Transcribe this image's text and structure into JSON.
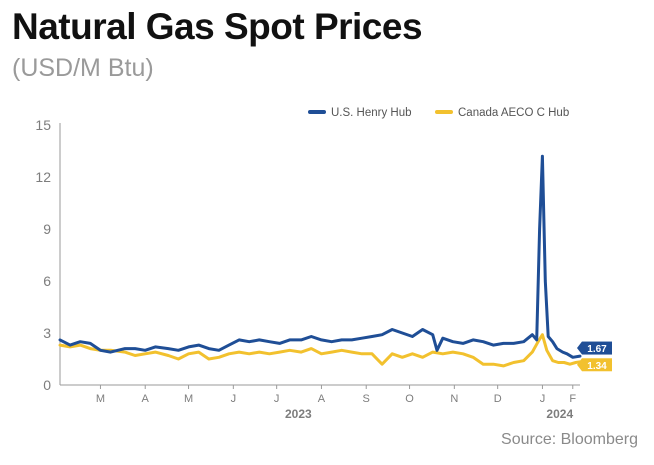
{
  "title": "Natural Gas Spot Prices",
  "subtitle": "(USD/M Btu)",
  "source": "Source: Bloomberg",
  "colors": {
    "henry": "#1f4e96",
    "aeco": "#f2c12e",
    "axis": "#9a9a9a"
  },
  "chart_data": {
    "type": "line",
    "ylim": [
      0,
      15
    ],
    "yticks": [
      0,
      3,
      6,
      9,
      12,
      15
    ],
    "x_range": [
      "2023-02-15",
      "2024-02-10"
    ],
    "x_month_ticks": [
      {
        "label": "M",
        "date": "2023-03-15"
      },
      {
        "label": "A",
        "date": "2023-04-15"
      },
      {
        "label": "M",
        "date": "2023-05-15"
      },
      {
        "label": "J",
        "date": "2023-06-15"
      },
      {
        "label": "J",
        "date": "2023-07-15"
      },
      {
        "label": "A",
        "date": "2023-08-15"
      },
      {
        "label": "S",
        "date": "2023-09-15"
      },
      {
        "label": "O",
        "date": "2023-10-15"
      },
      {
        "label": "N",
        "date": "2023-11-15"
      },
      {
        "label": "D",
        "date": "2023-12-15"
      },
      {
        "label": "J",
        "date": "2024-01-15"
      },
      {
        "label": "F",
        "date": "2024-02-05"
      }
    ],
    "year_labels": [
      {
        "label": "2023",
        "date": "2023-07-30"
      },
      {
        "label": "2024",
        "date": "2024-01-27"
      }
    ],
    "legend": {
      "position": "top-right"
    },
    "series": [
      {
        "name": "U.S. Henry Hub",
        "color": "#1f4e96",
        "end_label": "1.67",
        "points": [
          [
            "2023-02-15",
            2.6
          ],
          [
            "2023-02-22",
            2.3
          ],
          [
            "2023-03-01",
            2.5
          ],
          [
            "2023-03-08",
            2.4
          ],
          [
            "2023-03-15",
            2.0
          ],
          [
            "2023-03-22",
            1.9
          ],
          [
            "2023-04-01",
            2.1
          ],
          [
            "2023-04-08",
            2.1
          ],
          [
            "2023-04-15",
            2.0
          ],
          [
            "2023-04-22",
            2.2
          ],
          [
            "2023-05-01",
            2.1
          ],
          [
            "2023-05-08",
            2.0
          ],
          [
            "2023-05-15",
            2.2
          ],
          [
            "2023-05-22",
            2.3
          ],
          [
            "2023-05-29",
            2.1
          ],
          [
            "2023-06-05",
            2.0
          ],
          [
            "2023-06-12",
            2.3
          ],
          [
            "2023-06-19",
            2.6
          ],
          [
            "2023-06-26",
            2.5
          ],
          [
            "2023-07-03",
            2.6
          ],
          [
            "2023-07-10",
            2.5
          ],
          [
            "2023-07-17",
            2.4
          ],
          [
            "2023-07-24",
            2.6
          ],
          [
            "2023-08-01",
            2.6
          ],
          [
            "2023-08-08",
            2.8
          ],
          [
            "2023-08-15",
            2.6
          ],
          [
            "2023-08-22",
            2.5
          ],
          [
            "2023-08-29",
            2.6
          ],
          [
            "2023-09-05",
            2.6
          ],
          [
            "2023-09-12",
            2.7
          ],
          [
            "2023-09-19",
            2.8
          ],
          [
            "2023-09-26",
            2.9
          ],
          [
            "2023-10-03",
            3.2
          ],
          [
            "2023-10-10",
            3.0
          ],
          [
            "2023-10-17",
            2.8
          ],
          [
            "2023-10-24",
            3.2
          ],
          [
            "2023-10-31",
            2.9
          ],
          [
            "2023-11-03",
            2.0
          ],
          [
            "2023-11-07",
            2.7
          ],
          [
            "2023-11-14",
            2.5
          ],
          [
            "2023-11-21",
            2.4
          ],
          [
            "2023-11-28",
            2.6
          ],
          [
            "2023-12-05",
            2.5
          ],
          [
            "2023-12-12",
            2.3
          ],
          [
            "2023-12-19",
            2.4
          ],
          [
            "2023-12-26",
            2.4
          ],
          [
            "2024-01-02",
            2.5
          ],
          [
            "2024-01-08",
            2.9
          ],
          [
            "2024-01-11",
            2.6
          ],
          [
            "2024-01-13",
            9.0
          ],
          [
            "2024-01-15",
            13.2
          ],
          [
            "2024-01-17",
            6.0
          ],
          [
            "2024-01-19",
            2.8
          ],
          [
            "2024-01-22",
            2.5
          ],
          [
            "2024-01-25",
            2.1
          ],
          [
            "2024-01-29",
            1.9
          ],
          [
            "2024-02-01",
            1.8
          ],
          [
            "2024-02-05",
            1.6
          ],
          [
            "2024-02-10",
            1.67
          ]
        ]
      },
      {
        "name": "Canada AECO C Hub",
        "color": "#f2c12e",
        "end_label": "1.34",
        "points": [
          [
            "2023-02-15",
            2.3
          ],
          [
            "2023-02-22",
            2.2
          ],
          [
            "2023-03-01",
            2.3
          ],
          [
            "2023-03-08",
            2.1
          ],
          [
            "2023-03-15",
            2.0
          ],
          [
            "2023-03-22",
            2.0
          ],
          [
            "2023-04-01",
            1.9
          ],
          [
            "2023-04-08",
            1.7
          ],
          [
            "2023-04-15",
            1.8
          ],
          [
            "2023-04-22",
            1.9
          ],
          [
            "2023-05-01",
            1.7
          ],
          [
            "2023-05-08",
            1.5
          ],
          [
            "2023-05-15",
            1.8
          ],
          [
            "2023-05-22",
            1.9
          ],
          [
            "2023-05-29",
            1.5
          ],
          [
            "2023-06-05",
            1.6
          ],
          [
            "2023-06-12",
            1.8
          ],
          [
            "2023-06-19",
            1.9
          ],
          [
            "2023-06-26",
            1.8
          ],
          [
            "2023-07-03",
            1.9
          ],
          [
            "2023-07-10",
            1.8
          ],
          [
            "2023-07-17",
            1.9
          ],
          [
            "2023-07-24",
            2.0
          ],
          [
            "2023-08-01",
            1.9
          ],
          [
            "2023-08-08",
            2.1
          ],
          [
            "2023-08-15",
            1.8
          ],
          [
            "2023-08-22",
            1.9
          ],
          [
            "2023-08-29",
            2.0
          ],
          [
            "2023-09-05",
            1.9
          ],
          [
            "2023-09-12",
            1.8
          ],
          [
            "2023-09-19",
            1.8
          ],
          [
            "2023-09-26",
            1.2
          ],
          [
            "2023-10-03",
            1.8
          ],
          [
            "2023-10-10",
            1.6
          ],
          [
            "2023-10-17",
            1.8
          ],
          [
            "2023-10-24",
            1.6
          ],
          [
            "2023-10-31",
            1.9
          ],
          [
            "2023-11-07",
            1.8
          ],
          [
            "2023-11-14",
            1.9
          ],
          [
            "2023-11-21",
            1.8
          ],
          [
            "2023-11-28",
            1.6
          ],
          [
            "2023-12-05",
            1.2
          ],
          [
            "2023-12-12",
            1.2
          ],
          [
            "2023-12-19",
            1.1
          ],
          [
            "2023-12-26",
            1.3
          ],
          [
            "2024-01-02",
            1.4
          ],
          [
            "2024-01-08",
            1.9
          ],
          [
            "2024-01-12",
            2.5
          ],
          [
            "2024-01-15",
            2.9
          ],
          [
            "2024-01-18",
            2.0
          ],
          [
            "2024-01-22",
            1.4
          ],
          [
            "2024-01-26",
            1.3
          ],
          [
            "2024-01-30",
            1.3
          ],
          [
            "2024-02-03",
            1.2
          ],
          [
            "2024-02-07",
            1.3
          ],
          [
            "2024-02-10",
            1.34
          ]
        ]
      }
    ]
  }
}
